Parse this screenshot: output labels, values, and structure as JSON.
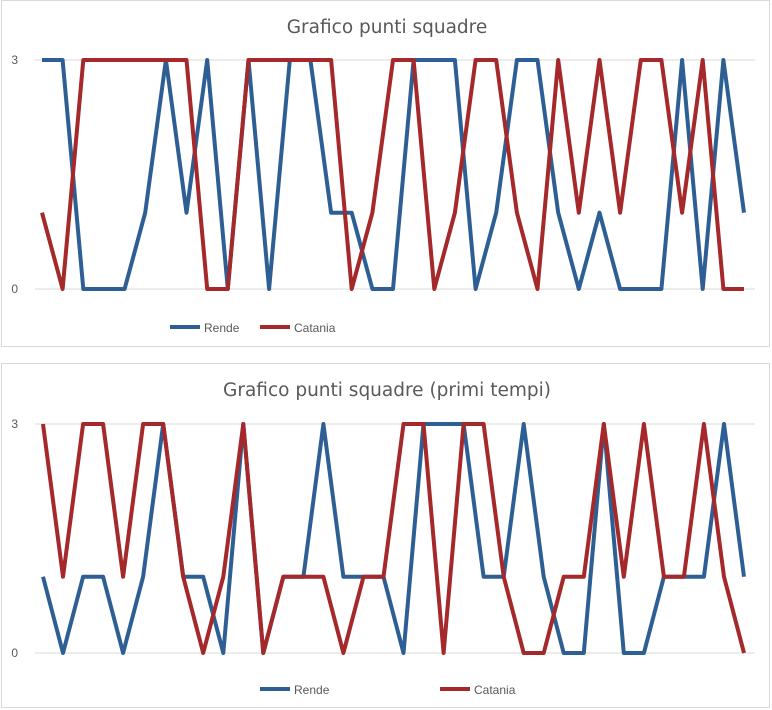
{
  "chart_data": [
    {
      "type": "line",
      "title": "Grafico punti squadre",
      "xlabel": "",
      "ylabel": "",
      "ylim": [
        0,
        3
      ],
      "yticks": [
        "0",
        "3"
      ],
      "grid": true,
      "legend": "bottom-left",
      "series": [
        {
          "name": "Rende",
          "color": "#2e5f94",
          "values": [
            3,
            3,
            0,
            0,
            0,
            1,
            3,
            1,
            3,
            0,
            3,
            0,
            3,
            3,
            1,
            1,
            0,
            0,
            3,
            3,
            3,
            0,
            1,
            3,
            3,
            1,
            0,
            1,
            0,
            0,
            0,
            3,
            0,
            3,
            1
          ]
        },
        {
          "name": "Catania",
          "color": "#a5282a",
          "values": [
            1,
            0,
            3,
            3,
            3,
            3,
            3,
            3,
            0,
            0,
            3,
            3,
            3,
            3,
            3,
            0,
            1,
            3,
            3,
            0,
            1,
            3,
            3,
            1,
            0,
            3,
            1,
            3,
            1,
            3,
            3,
            1,
            3,
            0,
            0
          ]
        }
      ]
    },
    {
      "type": "line",
      "title": "Grafico punti squadre (primi tempi)",
      "xlabel": "",
      "ylabel": "",
      "ylim": [
        0,
        3
      ],
      "yticks": [
        "0",
        "3"
      ],
      "grid": true,
      "legend": "bottom-center",
      "series": [
        {
          "name": "Rende",
          "color": "#2e5f94",
          "values": [
            1,
            0,
            1,
            1,
            0,
            1,
            3,
            1,
            1,
            0,
            3,
            0,
            1,
            1,
            3,
            1,
            1,
            1,
            0,
            3,
            3,
            3,
            1,
            1,
            3,
            1,
            0,
            0,
            3,
            0,
            0,
            1,
            1,
            1,
            3,
            1
          ]
        },
        {
          "name": "Catania",
          "color": "#a5282a",
          "values": [
            3,
            1,
            3,
            3,
            1,
            3,
            3,
            1,
            0,
            1,
            3,
            0,
            1,
            1,
            1,
            0,
            1,
            1,
            3,
            3,
            0,
            3,
            3,
            1,
            0,
            0,
            1,
            1,
            3,
            1,
            3,
            1,
            1,
            3,
            1,
            0
          ]
        }
      ]
    }
  ]
}
